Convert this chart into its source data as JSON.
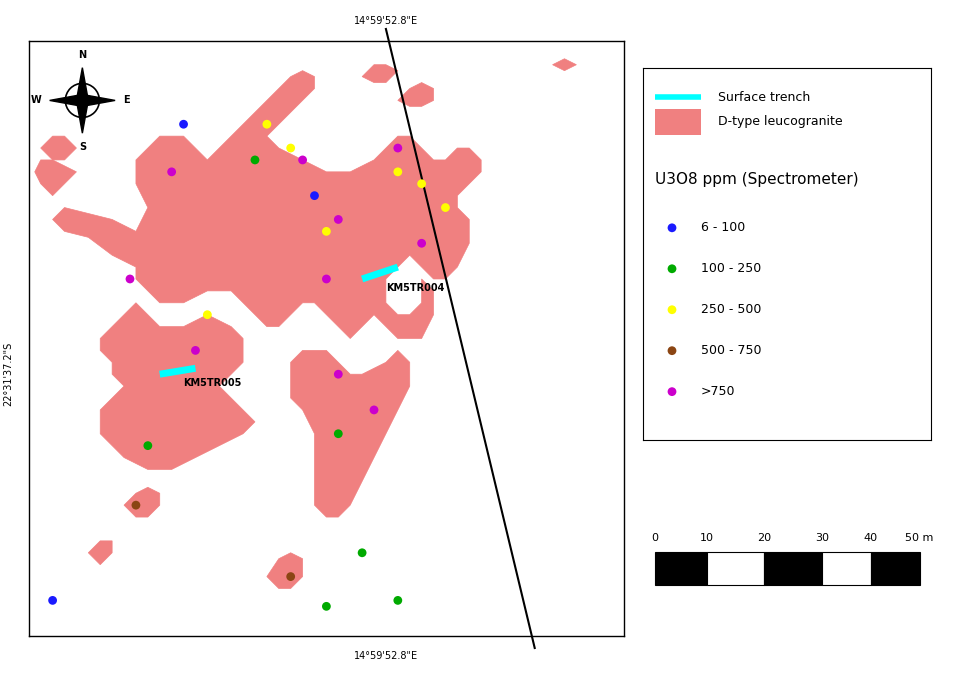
{
  "background_color": "#ffffff",
  "map_color": "#f08080",
  "trench_color": "#00ffff",
  "coord_top": "14°59'52.8\"E",
  "coord_bottom": "14°59'52.8\"E",
  "coord_left": "22°31'37.2\"S",
  "coord_right": "22°31'37.2\"S",
  "u3o8_title": "U3O8 ppm (Spectrometer)",
  "u3o8_categories": [
    {
      "label": "6 - 100",
      "color": "#1a1aff"
    },
    {
      "label": "100 - 250",
      "color": "#00aa00"
    },
    {
      "label": "250 - 500",
      "color": "#ffff00"
    },
    {
      "label": "500 - 750",
      "color": "#8b4513"
    },
    {
      "label": ">750",
      "color": "#cc00cc"
    }
  ],
  "trench4_label": "KM5TR004",
  "trench5_label": "KM5TR005",
  "dot_size": 40,
  "diagonal_line": [
    [
      0.595,
      1.0
    ],
    [
      0.82,
      0.0
    ]
  ],
  "map_xlim": [
    0,
    1
  ],
  "map_ylim": [
    0,
    1
  ]
}
